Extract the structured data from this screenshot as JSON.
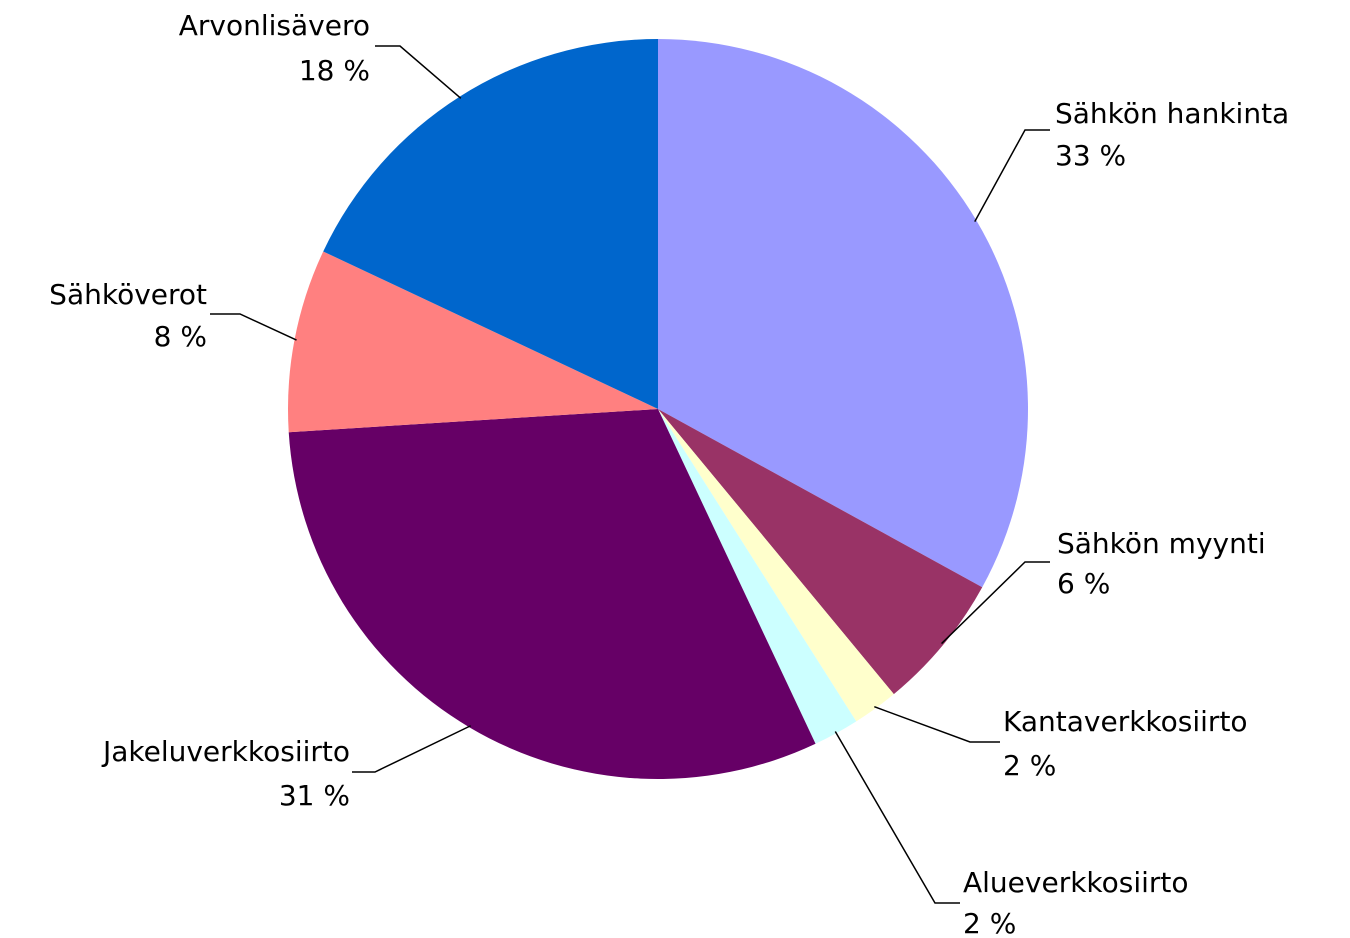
{
  "chart_data": {
    "type": "pie",
    "categories": [
      "Sähkön hankinta",
      "Sähkön myynti",
      "Kantaverkkosiirto",
      "Alueverkkosiirto",
      "Jakeluverkkosiirto",
      "Sähköverot",
      "Arvonlisävero"
    ],
    "values": [
      33,
      6,
      2,
      2,
      31,
      8,
      18
    ],
    "value_labels": [
      "33 %",
      "6 %",
      "2 %",
      "2 %",
      "31 %",
      "8 %",
      "18 %"
    ],
    "colors": [
      "#9999ff",
      "#993366",
      "#ffffcc",
      "#ccffff",
      "#660066",
      "#ff8080",
      "#0066cc"
    ]
  }
}
